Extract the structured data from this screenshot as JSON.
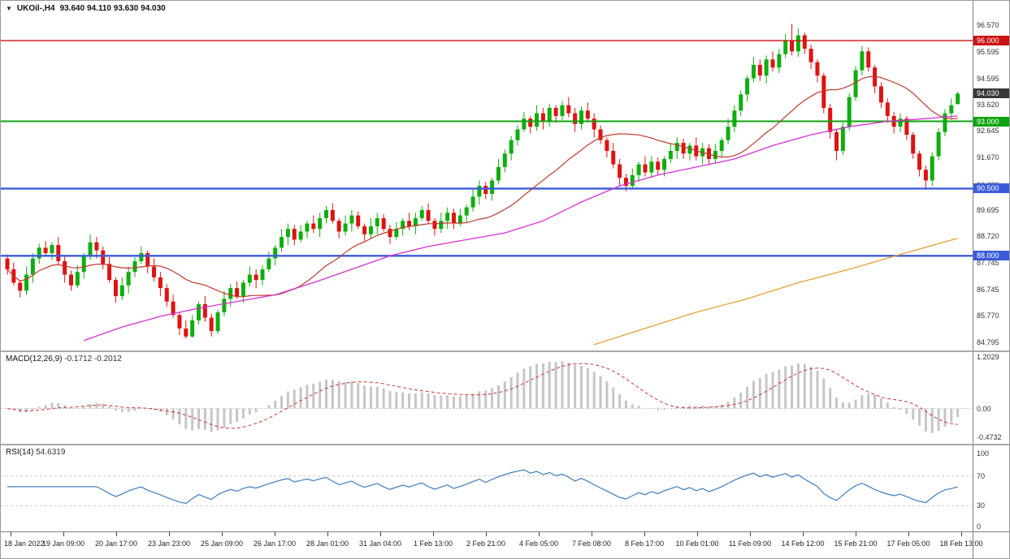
{
  "header": {
    "dropdown_icon": "▼",
    "title": "UKOil-,H4",
    "ohlc_text": "93.640 94.110 93.630 94.030"
  },
  "chart_data": {
    "type": "candlestick",
    "symbol": "UKOil-",
    "timeframe": "H4",
    "ohlc_display": {
      "open": "93.640",
      "high": "94.110",
      "low": "93.630",
      "close": "94.030"
    },
    "price_range": [
      84.6,
      97.3
    ],
    "y_ticks": [
      "96.570",
      "95.595",
      "94.595",
      "93.620",
      "92.645",
      "91.670",
      "90.620",
      "89.695",
      "88.720",
      "87.745",
      "86.745",
      "85.770",
      "84.795"
    ],
    "x_labels": [
      "18 Jan 2022",
      "19 Jan 09:00",
      "20 Jan 17:00",
      "23 Jan 23:00",
      "25 Jan 09:00",
      "26 Jan 17:00",
      "28 Jan 01:00",
      "31 Jan 04:00",
      "1 Feb 13:00",
      "2 Feb 21:00",
      "4 Feb 05:00",
      "7 Feb 08:00",
      "8 Feb 17:00",
      "10 Feb 01:00",
      "11 Feb 09:00",
      "14 Feb 12:00",
      "15 Feb 21:00",
      "17 Feb 05:00",
      "18 Feb 13:00"
    ],
    "hlines": [
      {
        "price": 96.0,
        "label": "96.000",
        "color": "#cc1111",
        "width": 1.4
      },
      {
        "price": 93.0,
        "label": "93.000",
        "color": "#0fa30f",
        "width": 2
      },
      {
        "price": 90.5,
        "label": "90.500",
        "color": "#3a5bd9",
        "width": 2.4
      },
      {
        "price": 88.0,
        "label": "88.000",
        "color": "#3a5bd9",
        "width": 2.4
      }
    ],
    "last_price": {
      "value": 94.03,
      "label": "94.030",
      "color": "#383838"
    },
    "overlays": {
      "ma_fast": {
        "type": "sma",
        "period": 21,
        "color": "#c0392b"
      },
      "ma_mid": {
        "color": "#d630d6",
        "points": [
          [
            12,
            84.85
          ],
          [
            18,
            85.35
          ],
          [
            24,
            85.75
          ],
          [
            30,
            86.05
          ],
          [
            36,
            86.3
          ],
          [
            42,
            86.55
          ],
          [
            48,
            87.0
          ],
          [
            54,
            87.5
          ],
          [
            60,
            88.0
          ],
          [
            66,
            88.35
          ],
          [
            72,
            88.6
          ],
          [
            78,
            88.85
          ],
          [
            84,
            89.3
          ],
          [
            90,
            90.0
          ],
          [
            96,
            90.6
          ],
          [
            102,
            91.0
          ],
          [
            108,
            91.3
          ],
          [
            114,
            91.6
          ],
          [
            120,
            92.1
          ],
          [
            126,
            92.5
          ],
          [
            132,
            92.8
          ],
          [
            138,
            93.0
          ],
          [
            144,
            93.1
          ],
          [
            149,
            93.2
          ]
        ]
      },
      "ma_slow": {
        "color": "#e8a030",
        "points": [
          [
            92,
            84.7
          ],
          [
            100,
            85.3
          ],
          [
            108,
            85.9
          ],
          [
            116,
            86.4
          ],
          [
            124,
            87.0
          ],
          [
            132,
            87.5
          ],
          [
            140,
            88.05
          ],
          [
            149,
            88.65
          ]
        ]
      }
    },
    "candles": [
      [
        87.9,
        88.05,
        87.3,
        87.5
      ],
      [
        87.5,
        87.75,
        86.9,
        87.0
      ],
      [
        87.0,
        87.1,
        86.45,
        86.7
      ],
      [
        86.7,
        87.6,
        86.55,
        87.3
      ],
      [
        87.3,
        88.1,
        87.0,
        87.9
      ],
      [
        87.9,
        88.45,
        87.7,
        88.3
      ],
      [
        88.3,
        88.55,
        88.0,
        88.1
      ],
      [
        88.1,
        88.5,
        87.85,
        88.4
      ],
      [
        88.4,
        88.7,
        87.65,
        87.8
      ],
      [
        87.8,
        88.0,
        87.0,
        87.3
      ],
      [
        87.3,
        87.45,
        86.7,
        86.9
      ],
      [
        86.9,
        87.65,
        86.8,
        87.4
      ],
      [
        87.4,
        88.1,
        87.15,
        88.0
      ],
      [
        88.0,
        88.8,
        87.85,
        88.5
      ],
      [
        88.5,
        88.7,
        87.9,
        88.2
      ],
      [
        88.2,
        88.35,
        87.5,
        87.7
      ],
      [
        87.7,
        87.95,
        87.0,
        87.1
      ],
      [
        87.1,
        87.2,
        86.25,
        86.5
      ],
      [
        86.5,
        87.2,
        86.35,
        86.9
      ],
      [
        86.9,
        87.6,
        86.6,
        87.4
      ],
      [
        87.4,
        87.95,
        87.2,
        87.8
      ],
      [
        87.8,
        88.35,
        87.7,
        88.1
      ],
      [
        88.1,
        88.2,
        87.35,
        87.6
      ],
      [
        87.6,
        87.9,
        87.05,
        87.2
      ],
      [
        87.2,
        87.4,
        86.5,
        86.8
      ],
      [
        86.8,
        86.95,
        86.1,
        86.3
      ],
      [
        86.3,
        86.55,
        85.7,
        85.8
      ],
      [
        85.8,
        85.9,
        85.05,
        85.3
      ],
      [
        85.3,
        85.6,
        84.92,
        85.0
      ],
      [
        85.0,
        85.8,
        84.95,
        85.6
      ],
      [
        85.6,
        86.3,
        85.45,
        86.2
      ],
      [
        86.2,
        86.5,
        85.55,
        85.7
      ],
      [
        85.7,
        85.85,
        85.0,
        85.2
      ],
      [
        85.2,
        86.0,
        85.1,
        85.9
      ],
      [
        85.9,
        86.7,
        85.75,
        86.4
      ],
      [
        86.4,
        86.95,
        86.1,
        86.8
      ],
      [
        86.8,
        87.05,
        86.4,
        86.5
      ],
      [
        86.5,
        87.1,
        86.25,
        87.0
      ],
      [
        87.0,
        87.6,
        86.85,
        87.3
      ],
      [
        87.3,
        87.5,
        86.8,
        87.1
      ],
      [
        87.1,
        87.65,
        86.9,
        87.5
      ],
      [
        87.5,
        88.15,
        87.4,
        87.9
      ],
      [
        87.9,
        88.4,
        87.65,
        88.3
      ],
      [
        88.3,
        89.0,
        88.15,
        88.7
      ],
      [
        88.7,
        89.2,
        88.4,
        89.0
      ],
      [
        89.0,
        89.15,
        88.4,
        88.6
      ],
      [
        88.6,
        89.15,
        88.5,
        88.9
      ],
      [
        88.9,
        89.3,
        88.65,
        89.2
      ],
      [
        89.2,
        89.5,
        88.85,
        89.0
      ],
      [
        89.0,
        89.6,
        88.7,
        89.4
      ],
      [
        89.4,
        89.85,
        89.2,
        89.7
      ],
      [
        89.7,
        89.95,
        89.2,
        89.3
      ],
      [
        89.3,
        89.4,
        88.65,
        88.9
      ],
      [
        88.9,
        89.5,
        88.75,
        89.2
      ],
      [
        89.2,
        89.7,
        88.9,
        89.5
      ],
      [
        89.5,
        89.65,
        89.0,
        89.1
      ],
      [
        89.1,
        89.2,
        88.55,
        88.8
      ],
      [
        88.8,
        89.4,
        88.65,
        89.1
      ],
      [
        89.1,
        89.6,
        88.8,
        89.4
      ],
      [
        89.4,
        89.55,
        88.9,
        89.0
      ],
      [
        89.0,
        89.15,
        88.45,
        88.7
      ],
      [
        88.7,
        89.25,
        88.6,
        89.0
      ],
      [
        89.0,
        89.4,
        88.75,
        89.3
      ],
      [
        89.3,
        89.6,
        88.95,
        89.1
      ],
      [
        89.1,
        89.6,
        88.8,
        89.4
      ],
      [
        89.4,
        89.85,
        89.3,
        89.7
      ],
      [
        89.7,
        89.95,
        89.2,
        89.3
      ],
      [
        89.3,
        89.4,
        88.75,
        89.0
      ],
      [
        89.0,
        89.6,
        88.85,
        89.3
      ],
      [
        89.3,
        89.8,
        89.0,
        89.6
      ],
      [
        89.6,
        89.75,
        89.0,
        89.2
      ],
      [
        89.2,
        89.75,
        89.1,
        89.5
      ],
      [
        89.5,
        89.9,
        89.25,
        89.8
      ],
      [
        89.8,
        90.5,
        89.65,
        90.2
      ],
      [
        90.2,
        90.8,
        89.9,
        90.6
      ],
      [
        90.6,
        90.75,
        90.1,
        90.3
      ],
      [
        90.3,
        90.9,
        90.05,
        90.8
      ],
      [
        90.8,
        91.6,
        90.65,
        91.3
      ],
      [
        91.3,
        91.95,
        91.1,
        91.8
      ],
      [
        91.8,
        92.45,
        91.55,
        92.3
      ],
      [
        92.3,
        92.85,
        92.1,
        92.7
      ],
      [
        92.7,
        93.35,
        92.6,
        93.1
      ],
      [
        93.1,
        93.2,
        92.55,
        92.8
      ],
      [
        92.8,
        93.6,
        92.65,
        93.3
      ],
      [
        93.3,
        93.5,
        92.7,
        93.0
      ],
      [
        93.0,
        93.65,
        92.8,
        93.5
      ],
      [
        93.5,
        93.6,
        92.95,
        93.2
      ],
      [
        93.2,
        93.75,
        93.05,
        93.6
      ],
      [
        93.6,
        93.9,
        93.15,
        93.3
      ],
      [
        93.3,
        93.5,
        92.6,
        92.9
      ],
      [
        92.9,
        93.55,
        92.7,
        93.4
      ],
      [
        93.4,
        93.7,
        92.95,
        93.1
      ],
      [
        93.1,
        93.3,
        92.4,
        92.7
      ],
      [
        92.7,
        92.85,
        92.15,
        92.3
      ],
      [
        92.3,
        92.4,
        91.65,
        91.9
      ],
      [
        91.9,
        92.2,
        91.25,
        91.4
      ],
      [
        91.4,
        91.6,
        90.6,
        90.9
      ],
      [
        90.9,
        91.05,
        90.4,
        90.6
      ],
      [
        90.6,
        91.25,
        90.45,
        91.0
      ],
      [
        91.0,
        91.5,
        90.75,
        91.4
      ],
      [
        91.4,
        91.7,
        90.95,
        91.1
      ],
      [
        91.1,
        91.7,
        90.9,
        91.5
      ],
      [
        91.5,
        91.65,
        91.0,
        91.2
      ],
      [
        91.2,
        91.7,
        90.95,
        91.6
      ],
      [
        91.6,
        92.2,
        91.45,
        91.9
      ],
      [
        91.9,
        92.4,
        91.6,
        92.2
      ],
      [
        92.2,
        92.35,
        91.6,
        91.8
      ],
      [
        91.8,
        92.2,
        91.55,
        92.1
      ],
      [
        92.1,
        92.4,
        91.55,
        91.7
      ],
      [
        91.7,
        92.2,
        91.4,
        92.0
      ],
      [
        92.0,
        92.15,
        91.4,
        91.6
      ],
      [
        91.6,
        92.15,
        91.45,
        91.9
      ],
      [
        91.9,
        92.4,
        91.65,
        92.3
      ],
      [
        92.3,
        93.1,
        92.15,
        92.8
      ],
      [
        92.8,
        93.6,
        92.6,
        93.4
      ],
      [
        93.4,
        94.15,
        93.2,
        94.0
      ],
      [
        94.0,
        94.7,
        93.75,
        94.6
      ],
      [
        94.6,
        95.4,
        94.45,
        95.1
      ],
      [
        95.1,
        95.3,
        94.5,
        94.7
      ],
      [
        94.7,
        95.45,
        94.4,
        95.3
      ],
      [
        95.3,
        95.6,
        94.85,
        95.0
      ],
      [
        95.0,
        95.7,
        94.8,
        95.5
      ],
      [
        95.5,
        96.25,
        95.35,
        96.0
      ],
      [
        96.0,
        96.62,
        95.45,
        95.6
      ],
      [
        95.6,
        96.45,
        95.4,
        96.2
      ],
      [
        96.2,
        96.3,
        95.5,
        95.7
      ],
      [
        95.7,
        95.85,
        94.95,
        95.2
      ],
      [
        95.2,
        95.3,
        94.45,
        94.7
      ],
      [
        94.7,
        94.8,
        93.3,
        93.5
      ],
      [
        93.5,
        93.65,
        92.35,
        92.6
      ],
      [
        92.6,
        92.7,
        91.55,
        91.9
      ],
      [
        91.9,
        92.95,
        91.75,
        92.8
      ],
      [
        92.8,
        94.05,
        92.65,
        93.9
      ],
      [
        93.9,
        95.05,
        93.75,
        94.9
      ],
      [
        94.9,
        95.8,
        94.7,
        95.6
      ],
      [
        95.6,
        95.75,
        94.85,
        95.0
      ],
      [
        95.0,
        95.1,
        94.05,
        94.3
      ],
      [
        94.3,
        94.45,
        93.5,
        93.7
      ],
      [
        93.7,
        93.85,
        92.95,
        93.2
      ],
      [
        93.2,
        93.35,
        92.55,
        92.8
      ],
      [
        92.8,
        93.3,
        92.6,
        93.1
      ],
      [
        93.1,
        93.2,
        92.3,
        92.5
      ],
      [
        92.5,
        92.6,
        91.6,
        91.8
      ],
      [
        91.8,
        91.9,
        90.95,
        91.2
      ],
      [
        91.2,
        91.35,
        90.45,
        90.8
      ],
      [
        90.8,
        91.85,
        90.6,
        91.7
      ],
      [
        91.7,
        92.75,
        91.55,
        92.6
      ],
      [
        92.6,
        93.45,
        92.45,
        93.3
      ],
      [
        93.3,
        93.85,
        93.1,
        93.6
      ],
      [
        93.64,
        94.11,
        93.63,
        94.03
      ]
    ],
    "indicators": {
      "macd": {
        "label": "MACD(12,26,9)",
        "values_text": "-0.1712 -0.2012",
        "fast": 12,
        "slow": 26,
        "signal": 9,
        "y_tick_labels": [
          "1.2029",
          "0.00",
          "-0.4732"
        ],
        "hist_color": "#c6c6c6",
        "signal_color": "#cc3333"
      },
      "rsi": {
        "label": "RSI(14)",
        "value_text": "54.6319",
        "period": 14,
        "levels": [
          70,
          30
        ],
        "y_tick_labels": [
          "100",
          "70",
          "30",
          "0"
        ],
        "line_color": "#3c7ebf"
      }
    },
    "colors": {
      "up": "#0eae0e",
      "down": "#e01212",
      "axis_text": "#333333",
      "separator": "#a8a8a8"
    }
  }
}
